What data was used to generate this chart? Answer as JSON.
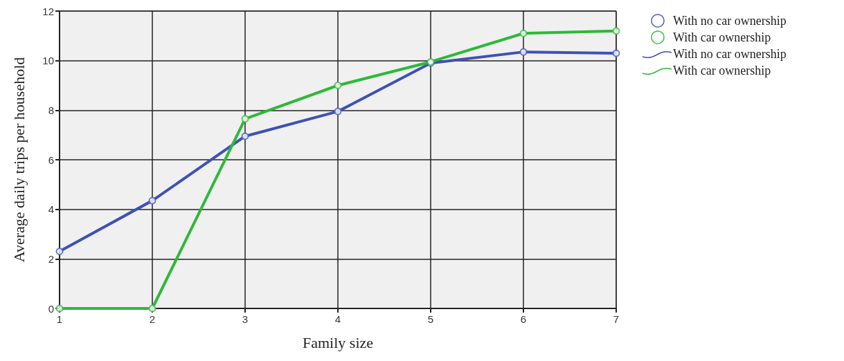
{
  "chart_data": {
    "type": "line",
    "xlabel": "Family size",
    "ylabel": "Average daily trips per household",
    "x": [
      1,
      2,
      3,
      4,
      5,
      6,
      7
    ],
    "xlim": [
      1,
      7
    ],
    "xticks": [
      1,
      2,
      3,
      4,
      5,
      6,
      7
    ],
    "ylim": [
      0,
      12
    ],
    "yticks": [
      0,
      2,
      4,
      6,
      8,
      10,
      12
    ],
    "grid": true,
    "legend": "top right",
    "series": [
      {
        "name": "With no car ownership",
        "type": "scatter",
        "marker": "circle",
        "color": "#4a5fc1",
        "values": [
          2.3,
          4.35,
          6.95,
          7.95,
          9.9,
          10.35,
          10.3
        ]
      },
      {
        "name": "With car ownership",
        "type": "scatter",
        "marker": "circle",
        "color": "#3dbb48",
        "values": [
          0,
          0,
          7.65,
          9.0,
          9.95,
          11.1,
          11.2
        ]
      },
      {
        "name": "With no car ownership",
        "marker": "none",
        "color": "#3f51b5",
        "values": [
          2.3,
          4.35,
          6.95,
          7.95,
          9.9,
          10.35,
          10.3
        ]
      },
      {
        "name": "With car ownership",
        "marker": "none",
        "color": "#2eb83a",
        "values": [
          0,
          0,
          7.65,
          9.0,
          9.95,
          11.1,
          11.2
        ]
      }
    ]
  }
}
